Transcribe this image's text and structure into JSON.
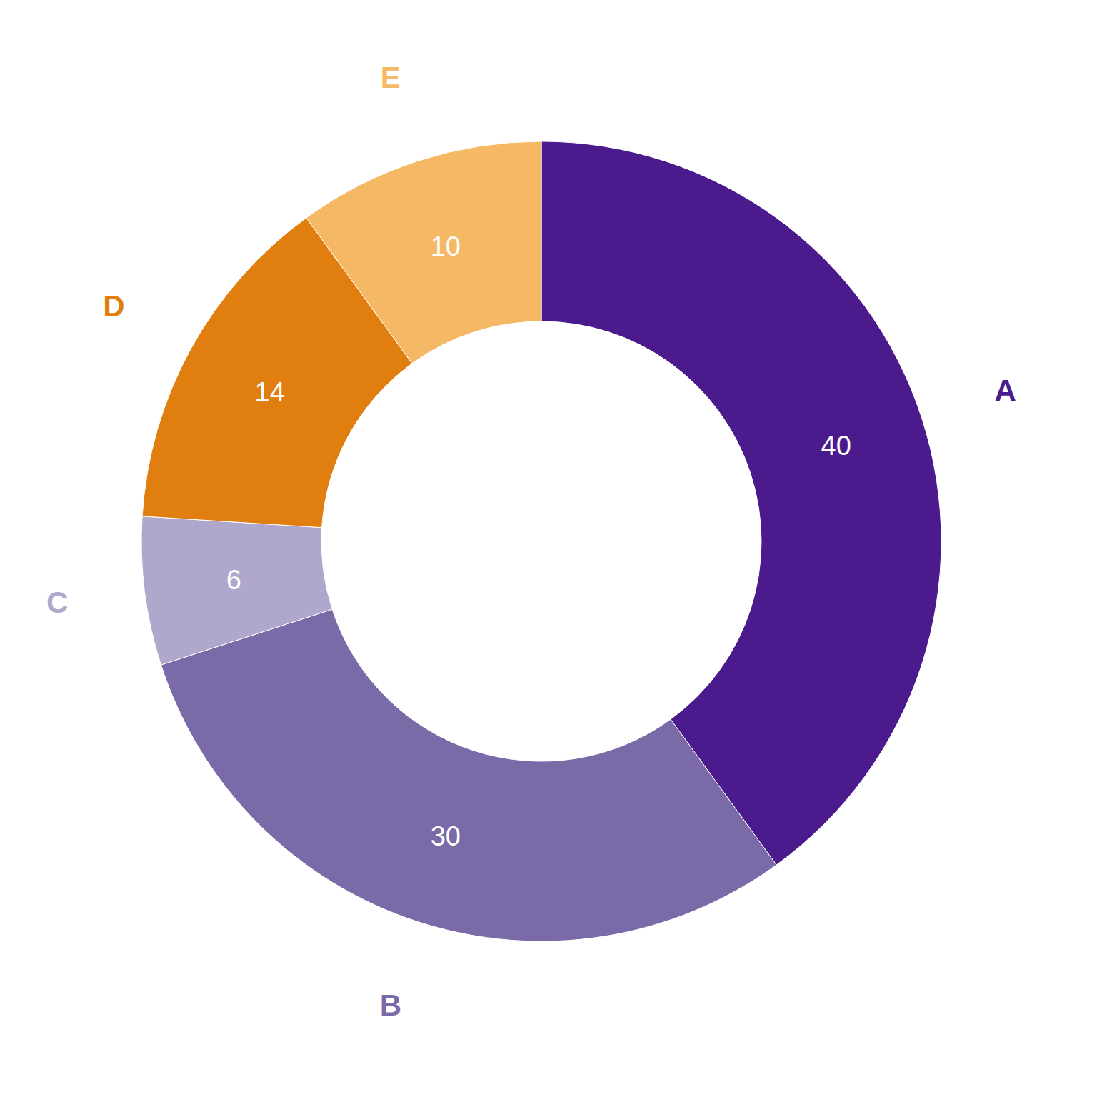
{
  "chart_data": {
    "type": "pie",
    "categories": [
      "A",
      "B",
      "C",
      "D",
      "E"
    ],
    "values": [
      40,
      30,
      6,
      14,
      10
    ],
    "colors": [
      "#4B1A8C",
      "#7B6AA8",
      "#B0A8CC",
      "#E07E10",
      "#F5B865"
    ],
    "data_labels": true
  }
}
